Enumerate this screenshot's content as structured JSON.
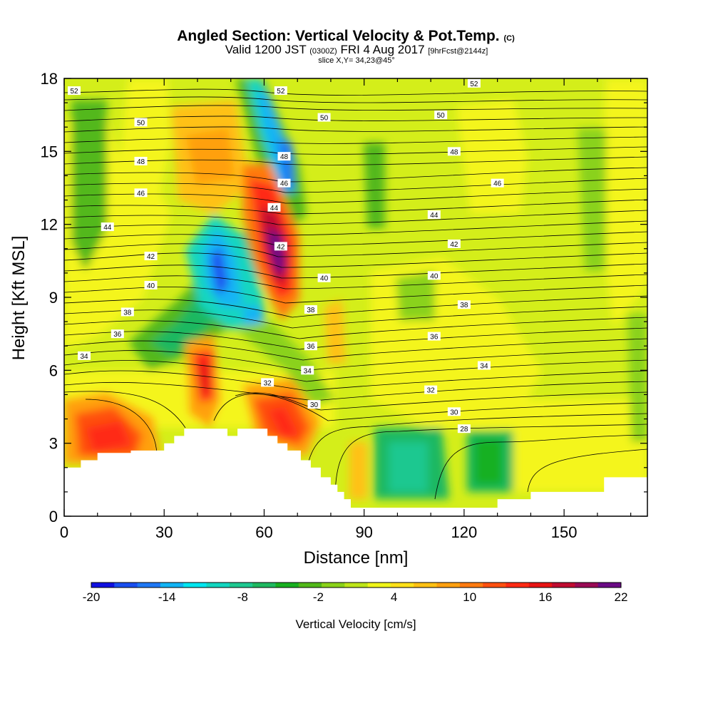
{
  "header": {
    "title_main": "Angled Section: Vertical Velocity & Pot.Temp.",
    "title_mark": "(C)",
    "valid_prefix": "Valid 1200 JST",
    "valid_utc": "(0300Z)",
    "valid_date": "FRI 4 Aug 2017",
    "fcst": "[9hrFcst@2144z]",
    "slice": "slice X,Y= 34,23@45°"
  },
  "chart_data": {
    "type": "heatmap",
    "xlabel": "Distance [nm]",
    "ylabel": "Height [Kft MSL]",
    "xlim": [
      0,
      175
    ],
    "ylim": [
      0,
      18
    ],
    "x_ticks": [
      0,
      30,
      60,
      90,
      120,
      150
    ],
    "y_ticks": [
      0,
      3,
      6,
      9,
      12,
      15,
      18
    ],
    "colorbar": {
      "title": "Vertical Velocity [cm/s]",
      "min": -20,
      "max": 22,
      "step": 2,
      "tick_labels": [
        -20,
        -14,
        -8,
        -2,
        4,
        10,
        16,
        22
      ],
      "colors": [
        "#1010e0",
        "#1a4ff0",
        "#1f78f5",
        "#12b4f5",
        "#00e6f0",
        "#12d6c0",
        "#1ec890",
        "#1fb860",
        "#18b020",
        "#52b81a",
        "#8ad21a",
        "#bde51a",
        "#f0f51a",
        "#ffe11a",
        "#ffc114",
        "#ffa010",
        "#ff7a10",
        "#ff5010",
        "#ff2a14",
        "#e81414",
        "#c00c30",
        "#9a0a55",
        "#6a0a85"
      ]
    },
    "terrain_kft": [
      [
        0,
        2.0
      ],
      [
        5,
        2.0
      ],
      [
        5,
        2.3
      ],
      [
        10,
        2.3
      ],
      [
        10,
        2.6
      ],
      [
        20,
        2.6
      ],
      [
        20,
        2.7
      ],
      [
        30,
        2.7
      ],
      [
        30,
        3.0
      ],
      [
        33,
        3.0
      ],
      [
        33,
        3.3
      ],
      [
        36,
        3.3
      ],
      [
        36,
        3.6
      ],
      [
        49,
        3.6
      ],
      [
        49,
        3.3
      ],
      [
        52,
        3.3
      ],
      [
        52,
        3.6
      ],
      [
        61,
        3.6
      ],
      [
        61,
        3.3
      ],
      [
        64,
        3.3
      ],
      [
        64,
        3.0
      ],
      [
        67,
        3.0
      ],
      [
        67,
        2.7
      ],
      [
        71,
        2.7
      ],
      [
        71,
        2.3
      ],
      [
        74,
        2.3
      ],
      [
        74,
        2.0
      ],
      [
        77,
        2.0
      ],
      [
        77,
        1.6
      ],
      [
        80,
        1.6
      ],
      [
        80,
        1.3
      ],
      [
        82,
        1.3
      ],
      [
        82,
        1.0
      ],
      [
        84,
        1.0
      ],
      [
        84,
        0.7
      ],
      [
        86,
        0.7
      ],
      [
        86,
        0.35
      ],
      [
        130,
        0.35
      ],
      [
        130,
        0.7
      ],
      [
        140,
        0.7
      ],
      [
        140,
        1.0
      ],
      [
        162,
        1.0
      ],
      [
        162,
        1.6
      ],
      [
        175,
        1.6
      ]
    ],
    "theta_labels": [
      {
        "text": "52",
        "x": 3,
        "y": 17.5
      },
      {
        "text": "50",
        "x": 23,
        "y": 16.2
      },
      {
        "text": "48",
        "x": 23,
        "y": 14.6
      },
      {
        "text": "46",
        "x": 23,
        "y": 13.3
      },
      {
        "text": "44",
        "x": 13,
        "y": 11.9
      },
      {
        "text": "42",
        "x": 26,
        "y": 10.7
      },
      {
        "text": "40",
        "x": 26,
        "y": 9.5
      },
      {
        "text": "38",
        "x": 19,
        "y": 8.4
      },
      {
        "text": "36",
        "x": 16,
        "y": 7.5
      },
      {
        "text": "34",
        "x": 6,
        "y": 6.6
      },
      {
        "text": "52",
        "x": 65,
        "y": 17.5
      },
      {
        "text": "50",
        "x": 78,
        "y": 16.4
      },
      {
        "text": "48",
        "x": 66,
        "y": 14.8
      },
      {
        "text": "46",
        "x": 66,
        "y": 13.7
      },
      {
        "text": "44",
        "x": 63,
        "y": 12.7
      },
      {
        "text": "42",
        "x": 65,
        "y": 11.1
      },
      {
        "text": "40",
        "x": 78,
        "y": 9.8
      },
      {
        "text": "38",
        "x": 74,
        "y": 8.5
      },
      {
        "text": "36",
        "x": 74,
        "y": 7.0
      },
      {
        "text": "34",
        "x": 73,
        "y": 6.0
      },
      {
        "text": "32",
        "x": 61,
        "y": 5.5
      },
      {
        "text": "30",
        "x": 75,
        "y": 4.6
      },
      {
        "text": "52",
        "x": 123,
        "y": 17.8
      },
      {
        "text": "50",
        "x": 113,
        "y": 16.5
      },
      {
        "text": "48",
        "x": 117,
        "y": 15.0
      },
      {
        "text": "46",
        "x": 130,
        "y": 13.7
      },
      {
        "text": "44",
        "x": 111,
        "y": 12.4
      },
      {
        "text": "42",
        "x": 117,
        "y": 11.2
      },
      {
        "text": "40",
        "x": 111,
        "y": 9.9
      },
      {
        "text": "38",
        "x": 120,
        "y": 8.7
      },
      {
        "text": "36",
        "x": 111,
        "y": 7.4
      },
      {
        "text": "34",
        "x": 126,
        "y": 6.2
      },
      {
        "text": "32",
        "x": 110,
        "y": 5.2
      },
      {
        "text": "30",
        "x": 117,
        "y": 4.3
      },
      {
        "text": "28",
        "x": 120,
        "y": 3.6
      }
    ]
  }
}
